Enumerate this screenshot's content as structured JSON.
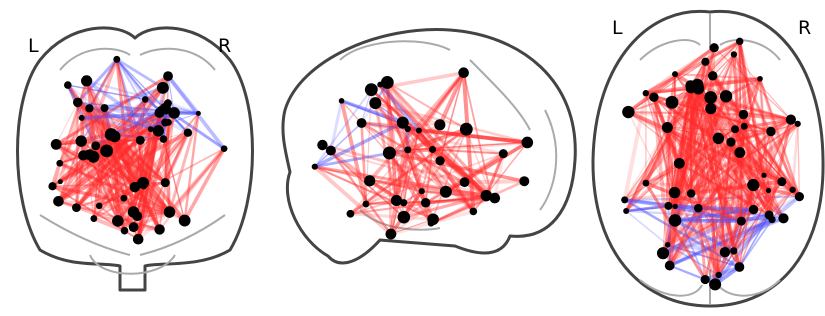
{
  "coronal": {
    "left": "L",
    "right": "R"
  },
  "axial": {
    "left": "L",
    "right": "R"
  }
}
